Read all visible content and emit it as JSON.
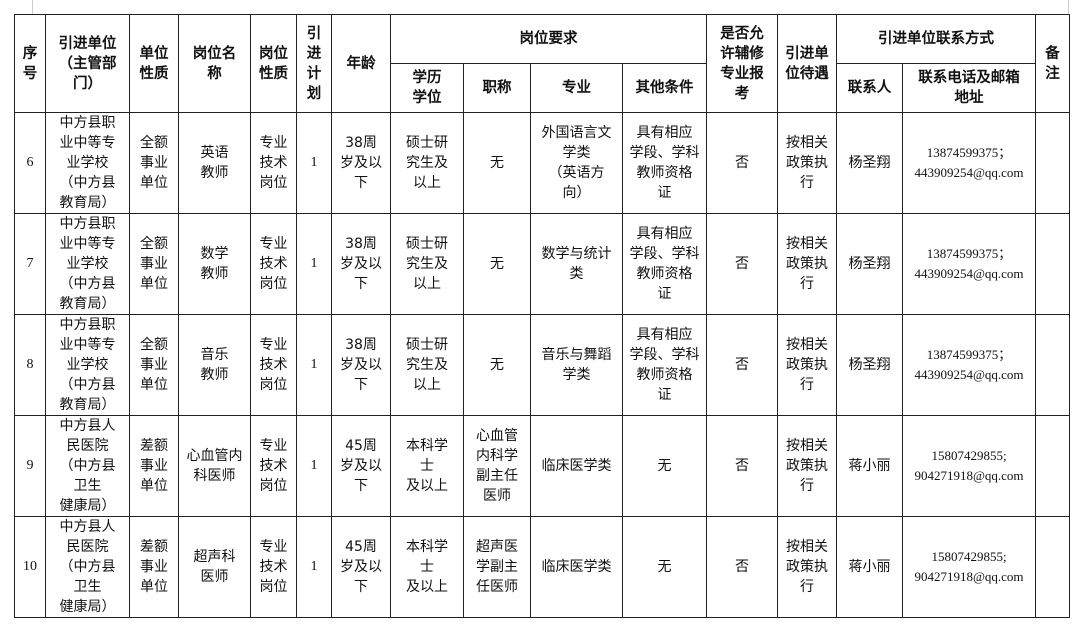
{
  "headers": {
    "seq": "序\n号",
    "unit": "引进单位\n（主管部\n门）",
    "unit_nature": "单位\n性质",
    "post_name": "岗位名\n称",
    "post_nature": "岗位\n性质",
    "plan": "引\n进\n计\n划",
    "age": "年龄",
    "requirements": "岗位要求",
    "degree": "学历\n学位",
    "title": "职称",
    "major": "专业",
    "other": "其他条件",
    "minor_allowed": "是否允\n许辅修\n专业报\n考",
    "treatment": "引进单\n位待遇",
    "contact_group": "引进单位联系方式",
    "contact_person": "联系人",
    "contact_info": "联系电话及邮箱\n地址",
    "remarks": "备\n注"
  },
  "rows": [
    {
      "seq": "6",
      "unit": "中方县职\n业中等专\n业学校\n（中方县\n教育局）",
      "unit_nature": "全额\n事业\n单位",
      "post_name": "英语\n教师",
      "post_nature": "专业\n技术\n岗位",
      "plan": "1",
      "age": "38周\n岁及以\n下",
      "degree": "硕士研\n究生及\n以上",
      "title": "无",
      "major": "外国语言文\n学类\n（英语方\n向）",
      "other": "具有相应\n学段、学科\n教师资格\n证",
      "minor_allowed": "否",
      "treatment": "按相关\n政策执\n行",
      "contact_person": "杨圣翔",
      "phone": "13874599375；",
      "email": "443909254@qq.com",
      "remarks": ""
    },
    {
      "seq": "7",
      "unit": "中方县职\n业中等专\n业学校\n（中方县\n教育局）",
      "unit_nature": "全额\n事业\n单位",
      "post_name": "数学\n教师",
      "post_nature": "专业\n技术\n岗位",
      "plan": "1",
      "age": "38周\n岁及以\n下",
      "degree": "硕士研\n究生及\n以上",
      "title": "无",
      "major": "数学与统计\n类",
      "other": "具有相应\n学段、学科\n教师资格\n证",
      "minor_allowed": "否",
      "treatment": "按相关\n政策执\n行",
      "contact_person": "杨圣翔",
      "phone": "13874599375；",
      "email": "443909254@qq.com",
      "remarks": ""
    },
    {
      "seq": "8",
      "unit": "中方县职\n业中等专\n业学校\n（中方县\n教育局）",
      "unit_nature": "全额\n事业\n单位",
      "post_name": "音乐\n教师",
      "post_nature": "专业\n技术\n岗位",
      "plan": "1",
      "age": "38周\n岁及以\n下",
      "degree": "硕士研\n究生及\n以上",
      "title": "无",
      "major": "音乐与舞蹈\n学类",
      "other": "具有相应\n学段、学科\n教师资格\n证",
      "minor_allowed": "否",
      "treatment": "按相关\n政策执\n行",
      "contact_person": "杨圣翔",
      "phone": "13874599375；",
      "email": "443909254@qq.com",
      "remarks": ""
    },
    {
      "seq": "9",
      "unit": "中方县人\n民医院\n（中方县\n卫生\n健康局）",
      "unit_nature": "差额\n事业\n单位",
      "post_name": "心血管内\n科医师",
      "post_nature": "专业\n技术\n岗位",
      "plan": "1",
      "age": "45周\n岁及以\n下",
      "degree": "本科学\n士\n及以上",
      "title": "心血管\n内科学\n副主任\n医师",
      "major": "临床医学类",
      "other": "无",
      "minor_allowed": "否",
      "treatment": "按相关\n政策执\n行",
      "contact_person": "蒋小丽",
      "phone": "15807429855;",
      "email": "904271918@qq.com",
      "remarks": ""
    },
    {
      "seq": "10",
      "unit": "中方县人\n民医院\n（中方县\n卫生\n健康局）",
      "unit_nature": "差额\n事业\n单位",
      "post_name": "超声科\n医师",
      "post_nature": "专业\n技术\n岗位",
      "plan": "1",
      "age": "45周\n岁及以\n下",
      "degree": "本科学\n士\n及以上",
      "title": "超声医\n学副主\n任医师",
      "major": "临床医学类",
      "other": "无",
      "minor_allowed": "否",
      "treatment": "按相关\n政策执\n行",
      "contact_person": "蒋小丽",
      "phone": "15807429855;",
      "email": "904271918@qq.com",
      "remarks": ""
    }
  ]
}
